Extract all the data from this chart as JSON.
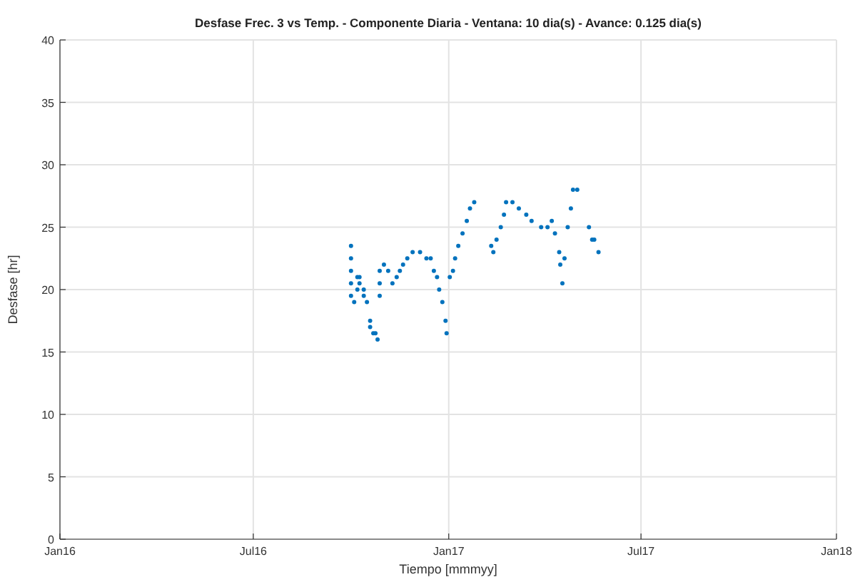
{
  "chart_data": {
    "type": "scatter",
    "title": "Desfase Frec. 3 vs Temp. - Componente Diaria - Ventana: 10 dia(s) - Avance: 0.125 dia(s)",
    "xlabel": "Tiempo [mmmyy]",
    "ylabel": "Desfase [hr]",
    "x": [
      "2016-10-01",
      "2016-10-01",
      "2016-10-01",
      "2016-10-01",
      "2016-10-01",
      "2016-10-04",
      "2016-10-07",
      "2016-10-07",
      "2016-10-09",
      "2016-10-09",
      "2016-10-13",
      "2016-10-13",
      "2016-10-16",
      "2016-10-19",
      "2016-10-19",
      "2016-10-22",
      "2016-10-24",
      "2016-10-26",
      "2016-10-28",
      "2016-10-28",
      "2016-10-28",
      "2016-11-01",
      "2016-11-05",
      "2016-11-09",
      "2016-11-13",
      "2016-11-16",
      "2016-11-19",
      "2016-11-23",
      "2016-11-28",
      "2016-12-05",
      "2016-12-11",
      "2016-12-15",
      "2016-12-18",
      "2016-12-21",
      "2016-12-23",
      "2016-12-26",
      "2016-12-29",
      "2016-12-30",
      "2017-01-02",
      "2017-01-05",
      "2017-01-07",
      "2017-01-10",
      "2017-01-14",
      "2017-01-18",
      "2017-01-21",
      "2017-01-25",
      "2017-02-10",
      "2017-02-12",
      "2017-02-15",
      "2017-02-19",
      "2017-02-22",
      "2017-02-24",
      "2017-03-02",
      "2017-03-08",
      "2017-03-15",
      "2017-03-20",
      "2017-03-29",
      "2017-04-04",
      "2017-04-08",
      "2017-04-11",
      "2017-04-15",
      "2017-04-16",
      "2017-04-18",
      "2017-04-20",
      "2017-04-23",
      "2017-04-26",
      "2017-04-28",
      "2017-05-02",
      "2017-05-13",
      "2017-05-16",
      "2017-05-18",
      "2017-05-22"
    ],
    "series": [
      {
        "color": "#0072bd",
        "values": [
          23.5,
          22.5,
          21.5,
          20.5,
          19.5,
          19,
          20,
          21,
          21,
          20.5,
          20,
          19.5,
          19,
          17.5,
          17,
          16.5,
          16.5,
          16,
          19.5,
          20.5,
          21.5,
          22,
          21.5,
          20.5,
          21,
          21.5,
          22,
          22.5,
          23,
          23,
          22.5,
          22.5,
          21.5,
          21,
          20,
          19,
          17.5,
          16.5,
          21,
          21.5,
          22.5,
          23.5,
          24.5,
          25.5,
          26.5,
          27,
          23.5,
          23,
          24,
          25,
          26,
          27,
          27,
          26.5,
          26,
          25.5,
          25,
          25,
          25.5,
          24.5,
          23,
          22,
          20.5,
          22.5,
          25,
          26.5,
          28,
          28,
          25,
          24,
          24,
          23
        ]
      }
    ],
    "xlim": [
      "2016-01-01",
      "2018-01-01"
    ],
    "xticks": [
      {
        "value": "2016-01-01",
        "label": "Jan16"
      },
      {
        "value": "2016-07-01",
        "label": "Jul16"
      },
      {
        "value": "2017-01-01",
        "label": "Jan17"
      },
      {
        "value": "2017-07-01",
        "label": "Jul17"
      },
      {
        "value": "2018-01-01",
        "label": "Jan18"
      }
    ],
    "ylim": [
      0,
      40
    ],
    "yticks": [
      0,
      5,
      10,
      15,
      20,
      25,
      30,
      35,
      40
    ],
    "grid": true,
    "marker": "circle"
  }
}
